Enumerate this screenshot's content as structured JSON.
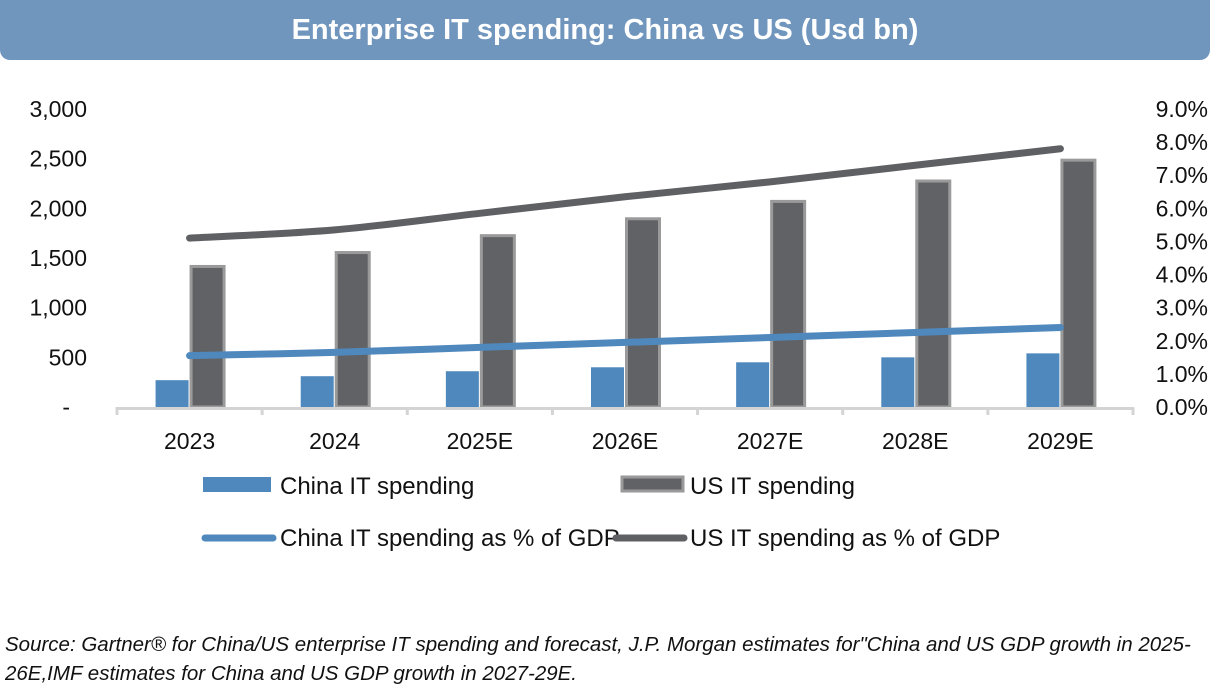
{
  "header": {
    "title": "Enterprise IT spending: China vs US (Usd bn)"
  },
  "chart_data": {
    "type": "bar",
    "title": "Enterprise IT spending: China vs US (Usd bn)",
    "categories": [
      "2023",
      "2024",
      "2025E",
      "2026E",
      "2027E",
      "2028E",
      "2029E"
    ],
    "left_axis": {
      "label": "",
      "range": [
        0,
        3000
      ],
      "tick_labels": [
        "-",
        "500",
        "1,000",
        "1,500",
        "2,000",
        "2,500",
        "3,000"
      ],
      "tick_values": [
        0,
        500,
        1000,
        1500,
        2000,
        2500,
        3000
      ]
    },
    "right_axis": {
      "label": "",
      "range": [
        0,
        9
      ],
      "tick_labels": [
        "0.0%",
        "1.0%",
        "2.0%",
        "3.0%",
        "4.0%",
        "5.0%",
        "6.0%",
        "7.0%",
        "8.0%",
        "9.0%"
      ],
      "tick_values": [
        0,
        1,
        2,
        3,
        4,
        5,
        6,
        7,
        8,
        9
      ]
    },
    "series": [
      {
        "name": "China IT spending",
        "kind": "bar",
        "axis": "left",
        "color": "#4f88bd",
        "values": [
          270,
          310,
          360,
          400,
          450,
          500,
          540
        ]
      },
      {
        "name": "US IT spending",
        "kind": "bar",
        "axis": "left",
        "color": "#616265",
        "border": "#9a9a9a",
        "values": [
          1430,
          1570,
          1740,
          1910,
          2085,
          2290,
          2500
        ]
      },
      {
        "name": "China IT spending as % of GDP",
        "kind": "line",
        "axis": "right",
        "color": "#4f88bd",
        "values": [
          1.55,
          1.65,
          1.8,
          1.95,
          2.1,
          2.25,
          2.4
        ]
      },
      {
        "name": "US IT spending as % of GDP",
        "kind": "line",
        "axis": "right",
        "color": "#5f6064",
        "values": [
          5.1,
          5.35,
          5.85,
          6.35,
          6.8,
          7.3,
          7.8
        ]
      }
    ],
    "grid": false,
    "legend_position": "bottom"
  },
  "legend": {
    "china_bar": "China IT spending",
    "us_bar": "US IT spending",
    "china_line": "China IT spending as % of GDP",
    "us_line": "US IT spending as % of GDP"
  },
  "footer": {
    "source": "Source: Gartner® for China/US enterprise IT spending and forecast, J.P. Morgan estimates for\"China and US GDP growth in 2025-26E,IMF estimates for China and US GDP growth in 2027-29E."
  }
}
